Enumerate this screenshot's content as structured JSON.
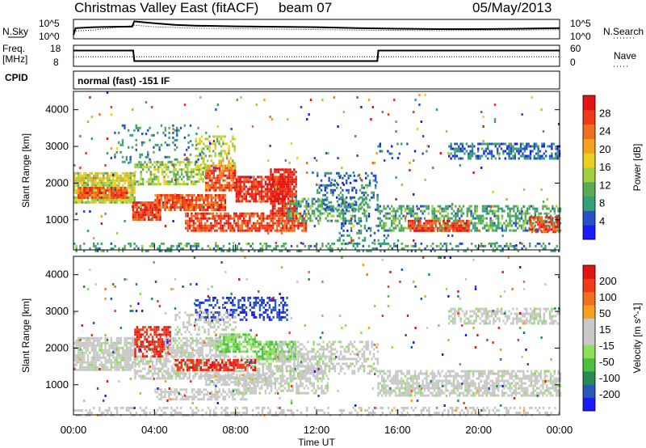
{
  "header": {
    "title": "Christmas Valley East (fitACF)",
    "beam": "beam 07",
    "date": "05/May/2013"
  },
  "noise_panel": {
    "left_label": "N.Sky",
    "right_label": "N.Search",
    "tick_top": "10^5",
    "tick_bottom": "10^0"
  },
  "freq_panel": {
    "left_label_line1": "Freq.",
    "left_label_line2": "[MHz]",
    "right_label": "Nave",
    "left_ticks": [
      "18",
      "8"
    ],
    "right_ticks": [
      "60",
      "0"
    ]
  },
  "cpid": {
    "label": "CPID",
    "value": "normal (fast) -151 IF"
  },
  "chart_data": [
    {
      "type": "line",
      "name": "noise",
      "x_range_hours": [
        0,
        24
      ],
      "series": [
        {
          "name": "N.Sky",
          "style": "solid",
          "x": [
            0,
            0.1,
            1,
            2,
            2.9,
            3,
            3.5,
            4,
            5,
            6,
            8,
            10,
            12,
            14,
            16,
            18,
            20,
            22,
            24
          ],
          "y_frac": [
            0.2,
            0.55,
            0.6,
            0.62,
            0.63,
            0.9,
            0.85,
            0.8,
            0.72,
            0.68,
            0.64,
            0.62,
            0.6,
            0.55,
            0.52,
            0.5,
            0.5,
            0.52,
            0.55
          ]
        },
        {
          "name": "N.Search",
          "style": "dotted",
          "x": [
            0,
            1,
            3,
            4,
            6,
            10,
            14,
            18,
            22,
            24
          ],
          "y_frac": [
            0.4,
            0.45,
            0.7,
            0.62,
            0.55,
            0.5,
            0.45,
            0.42,
            0.45,
            0.47
          ]
        }
      ]
    },
    {
      "type": "line",
      "name": "frequency",
      "x_range_hours": [
        0,
        24
      ],
      "ylim": [
        8,
        18
      ],
      "y2lim": [
        0,
        60
      ],
      "series": [
        {
          "name": "Freq",
          "style": "solid",
          "x": [
            0,
            2.95,
            3,
            15,
            15.05,
            24
          ],
          "y": [
            15.5,
            15.5,
            10.5,
            10.5,
            15.5,
            15.5
          ]
        },
        {
          "name": "Nave",
          "style": "dotted",
          "x": [
            0,
            24
          ],
          "y": [
            12.5,
            12.5
          ]
        }
      ]
    },
    {
      "type": "heatmap",
      "name": "power",
      "xlabel": "",
      "ylabel": "Slant Range [km]",
      "x_range_hours": [
        0,
        24
      ],
      "ylim": [
        180,
        4500
      ],
      "y_ticks": [
        1000,
        2000,
        3000,
        4000
      ],
      "colorbar": {
        "label": "Power [dB]",
        "ticks": [
          "4",
          "8",
          "12",
          "16",
          "20",
          "24",
          "28"
        ],
        "range": [
          0,
          32
        ],
        "colors": [
          "#1a1aff",
          "#2850c8",
          "#33a07a",
          "#5aaa55",
          "#a0d040",
          "#e8d020",
          "#f5a020",
          "#f07020",
          "#f03a18",
          "#e51414"
        ]
      },
      "regions": [
        {
          "t0": 0.0,
          "t1": 3.0,
          "r0": 1500,
          "r1": 2300,
          "v": 16,
          "d": 0.85
        },
        {
          "t0": 0.2,
          "t1": 2.6,
          "r0": 1600,
          "r1": 1900,
          "v": 26,
          "d": 0.9
        },
        {
          "t0": 2.9,
          "t1": 4.3,
          "r0": 1000,
          "r1": 1500,
          "v": 28,
          "d": 0.9
        },
        {
          "t0": 4.0,
          "t1": 7.5,
          "r0": 1300,
          "r1": 1700,
          "v": 26,
          "d": 0.85
        },
        {
          "t0": 6.5,
          "t1": 8.0,
          "r0": 1800,
          "r1": 2500,
          "v": 26,
          "d": 0.8
        },
        {
          "t0": 8.0,
          "t1": 10.5,
          "r0": 1500,
          "r1": 2200,
          "v": 28,
          "d": 0.8
        },
        {
          "t0": 9.7,
          "t1": 11.0,
          "r0": 1100,
          "r1": 2400,
          "v": 29,
          "d": 0.8
        },
        {
          "t0": 5.5,
          "t1": 11.5,
          "r0": 700,
          "r1": 1200,
          "v": 27,
          "d": 0.75
        },
        {
          "t0": 3.0,
          "t1": 6.5,
          "r0": 2000,
          "r1": 2600,
          "v": 14,
          "d": 0.55
        },
        {
          "t0": 6.0,
          "t1": 8.0,
          "r0": 2400,
          "r1": 3300,
          "v": 16,
          "d": 0.45
        },
        {
          "t0": 2.0,
          "t1": 6.5,
          "r0": 2600,
          "r1": 3600,
          "v": 8,
          "d": 0.15
        },
        {
          "t0": 10.5,
          "t1": 14.5,
          "r0": 1000,
          "r1": 1600,
          "v": 10,
          "d": 0.45
        },
        {
          "t0": 12.0,
          "t1": 15.0,
          "r0": 1300,
          "r1": 2300,
          "v": 7,
          "d": 0.3
        },
        {
          "t0": 13.0,
          "t1": 15.5,
          "r0": 400,
          "r1": 1000,
          "v": 7,
          "d": 0.25
        },
        {
          "t0": 15.0,
          "t1": 24.0,
          "r0": 700,
          "r1": 1400,
          "v": 10,
          "d": 0.55
        },
        {
          "t0": 16.5,
          "t1": 19.5,
          "r0": 700,
          "r1": 1000,
          "v": 27,
          "d": 0.75
        },
        {
          "t0": 22.5,
          "t1": 24.0,
          "r0": 700,
          "r1": 1100,
          "v": 27,
          "d": 0.75
        },
        {
          "t0": 18.5,
          "t1": 24.0,
          "r0": 2700,
          "r1": 3100,
          "v": 6,
          "d": 0.5
        },
        {
          "t0": 15.0,
          "t1": 17.5,
          "r0": 2800,
          "r1": 3100,
          "v": 5,
          "d": 0.15
        },
        {
          "t0": 0.0,
          "t1": 24.0,
          "r0": 180,
          "r1": 380,
          "v": 9,
          "d": 0.3
        },
        {
          "t0": 0.0,
          "t1": 24.0,
          "r0": 300,
          "r1": 4500,
          "v": 6,
          "d": 0.015
        }
      ]
    },
    {
      "type": "heatmap",
      "name": "velocity",
      "xlabel": "Time UT",
      "ylabel": "Slant Range [km]",
      "x_range_hours": [
        0,
        24
      ],
      "ylim": [
        180,
        4500
      ],
      "y_ticks": [
        1000,
        2000,
        3000,
        4000
      ],
      "x_ticks": [
        "00:00",
        "04:00",
        "08:00",
        "12:00",
        "16:00",
        "20:00",
        "00:00"
      ],
      "colorbar": {
        "label": "Velocity [m s^-1]",
        "ticks": [
          "200",
          "100",
          "50",
          "15",
          "-15",
          "-50",
          "-100",
          "-200"
        ],
        "range": [
          -250,
          250
        ],
        "colors": [
          "#1a1aff",
          "#2858b8",
          "#2a8a55",
          "#4cc040",
          "#8ce05a",
          "#c8c8c8",
          "#c8c8c8",
          "#f5a020",
          "#f07020",
          "#f03a18",
          "#e51414"
        ]
      },
      "regions": [
        {
          "t0": 0.0,
          "t1": 3.0,
          "r0": 1400,
          "r1": 2300,
          "v": 0,
          "d": 0.8
        },
        {
          "t0": 3.0,
          "t1": 12.5,
          "r0": 1200,
          "r1": 1800,
          "v": 0,
          "d": 0.6
        },
        {
          "t0": 3.0,
          "t1": 4.8,
          "r0": 1800,
          "r1": 2600,
          "v": 200,
          "d": 0.65
        },
        {
          "t0": 4.5,
          "t1": 7.5,
          "r0": 1800,
          "r1": 2300,
          "v": 0,
          "d": 0.7
        },
        {
          "t0": 7.0,
          "t1": 9.0,
          "r0": 1900,
          "r1": 2400,
          "v": -60,
          "d": 0.7
        },
        {
          "t0": 9.0,
          "t1": 11.0,
          "r0": 1700,
          "r1": 2200,
          "v": -70,
          "d": 0.75
        },
        {
          "t0": 5.0,
          "t1": 9.0,
          "r0": 1400,
          "r1": 1700,
          "v": 200,
          "d": 0.65
        },
        {
          "t0": 6.5,
          "t1": 9.5,
          "r0": 1000,
          "r1": 1300,
          "v": 40,
          "d": 0.65
        },
        {
          "t0": 4.0,
          "t1": 8.5,
          "r0": 600,
          "r1": 900,
          "v": 40,
          "d": 0.55
        },
        {
          "t0": 8.0,
          "t1": 12.5,
          "r0": 800,
          "r1": 1200,
          "v": 0,
          "d": 0.55
        },
        {
          "t0": 6.0,
          "t1": 10.5,
          "r0": 2800,
          "r1": 3400,
          "v": -200,
          "d": 0.45
        },
        {
          "t0": 5.0,
          "t1": 8.0,
          "r0": 2400,
          "r1": 3000,
          "v": 0,
          "d": 0.35
        },
        {
          "t0": 10.0,
          "t1": 15.0,
          "r0": 1300,
          "r1": 2200,
          "v": 0,
          "d": 0.45
        },
        {
          "t0": 15.0,
          "t1": 24.0,
          "r0": 700,
          "r1": 1400,
          "v": 0,
          "d": 0.65
        },
        {
          "t0": 18.5,
          "t1": 24.0,
          "r0": 2700,
          "r1": 3100,
          "v": 0,
          "d": 0.55
        },
        {
          "t0": 0.0,
          "t1": 24.0,
          "r0": 180,
          "r1": 400,
          "v": 40,
          "d": 0.35
        },
        {
          "t0": 0.0,
          "t1": 24.0,
          "r0": 300,
          "r1": 4500,
          "v": 60,
          "d": 0.015
        }
      ]
    }
  ]
}
